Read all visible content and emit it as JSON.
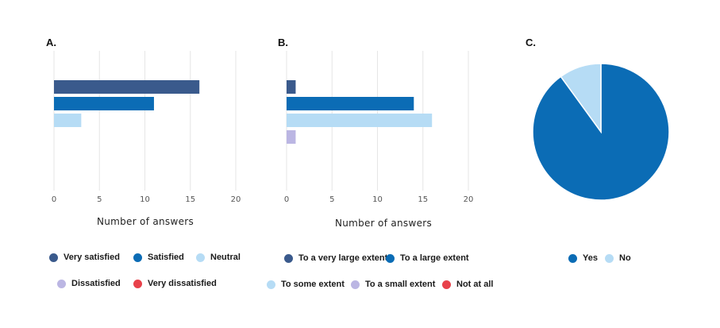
{
  "chart_data": [
    {
      "panel": "A.",
      "type": "bar",
      "orientation": "horizontal",
      "xlabel": "Number of answers",
      "xlim": [
        0,
        20
      ],
      "xticks": [
        0,
        5,
        10,
        15,
        20
      ],
      "grid": true,
      "categories": [
        "Very satisfied",
        "Satisfied",
        "Neutral",
        "Dissatisfied",
        "Very dissatisfied"
      ],
      "values": [
        16,
        11,
        3,
        0,
        0
      ],
      "colors": [
        "#3a5a8c",
        "#0b6cb5",
        "#b6dcf5",
        "#bbb6e3",
        "#e8414a"
      ],
      "legend_position": "bottom"
    },
    {
      "panel": "B.",
      "type": "bar",
      "orientation": "horizontal",
      "xlabel": "Number of answers",
      "xlim": [
        0,
        20
      ],
      "xticks": [
        0,
        5,
        10,
        15,
        20
      ],
      "grid": true,
      "categories": [
        "To a very large extent",
        "To a large extent",
        "To some extent",
        "To a small extent",
        "Not at all"
      ],
      "values": [
        1,
        14,
        16,
        1,
        0
      ],
      "colors": [
        "#3a5a8c",
        "#0b6cb5",
        "#b6dcf5",
        "#bbb6e3",
        "#e8414a"
      ],
      "legend_position": "bottom"
    },
    {
      "panel": "C.",
      "type": "pie",
      "categories": [
        "Yes",
        "No"
      ],
      "values": [
        90,
        10
      ],
      "colors": [
        "#0b6cb5",
        "#b6dcf5"
      ],
      "legend_position": "bottom"
    }
  ]
}
